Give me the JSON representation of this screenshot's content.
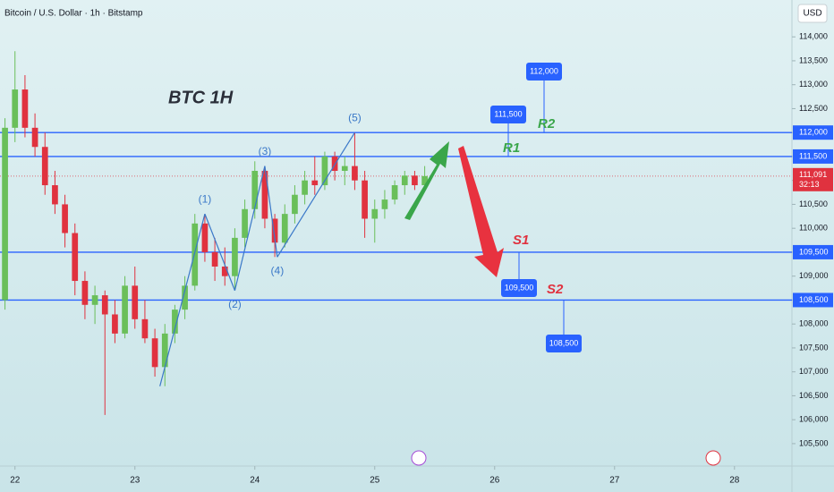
{
  "chart_data": {
    "type": "candlestick",
    "title": "Bitcoin / U.S. Dollar · 1h · Bitstamp",
    "currency": "USD",
    "annotation": "BTC 1H",
    "up_color": "#6abf5a",
    "down_color": "#e0323f",
    "level_color": "#2962ff",
    "x": [
      -2,
      0,
      2,
      4,
      6,
      8,
      10,
      12,
      14,
      16,
      18,
      20,
      22,
      24,
      26,
      28,
      30,
      32,
      34,
      36,
      38,
      40,
      42,
      44,
      46,
      48,
      50,
      52,
      54,
      56,
      58,
      60,
      62,
      64,
      66,
      68,
      70,
      72,
      74,
      76,
      78,
      80,
      82
    ],
    "open": [
      108500,
      112100,
      112900,
      112100,
      111700,
      110900,
      110500,
      109900,
      108900,
      108400,
      108600,
      108200,
      107800,
      108800,
      108100,
      107700,
      107100,
      107800,
      108300,
      108800,
      110100,
      109500,
      109200,
      109000,
      109800,
      110400,
      111200,
      110200,
      109700,
      110300,
      110700,
      111000,
      110900,
      111500,
      111200,
      111300,
      111000,
      110200,
      110400,
      110600,
      110900,
      111100,
      110900
    ],
    "high": [
      112300,
      113700,
      113200,
      112400,
      112000,
      111200,
      110700,
      110100,
      109100,
      108800,
      108700,
      108500,
      109000,
      109200,
      108500,
      107900,
      108000,
      108400,
      109000,
      110300,
      110300,
      109800,
      109600,
      110000,
      110600,
      111400,
      111300,
      110300,
      110500,
      110900,
      111200,
      111500,
      111600,
      111600,
      111500,
      112000,
      111200,
      110600,
      110800,
      111000,
      111200,
      111200,
      111300
    ],
    "low": [
      108300,
      111800,
      111900,
      111500,
      110700,
      110300,
      109600,
      108600,
      108100,
      108000,
      106100,
      107600,
      107700,
      107900,
      107600,
      106900,
      106700,
      107600,
      108100,
      108700,
      109300,
      108900,
      108800,
      108700,
      109600,
      110200,
      110000,
      109400,
      109600,
      110100,
      110500,
      110700,
      110800,
      111000,
      110900,
      110800,
      109800,
      109700,
      110200,
      110500,
      110700,
      110800,
      110800
    ],
    "close": [
      112100,
      112900,
      112100,
      111700,
      110900,
      110500,
      109900,
      108900,
      108400,
      108600,
      108200,
      107800,
      108800,
      108100,
      107700,
      107100,
      107800,
      108300,
      108800,
      110100,
      109500,
      109200,
      109000,
      109800,
      110400,
      111200,
      110200,
      109700,
      110300,
      110700,
      111000,
      110900,
      111500,
      111200,
      111300,
      111000,
      110200,
      110400,
      110600,
      110900,
      111100,
      110900,
      111091
    ],
    "xlim": [
      -3,
      155.5
    ],
    "xticks": [
      {
        "value": 0,
        "label": "22"
      },
      {
        "value": 24,
        "label": "23"
      },
      {
        "value": 48,
        "label": "24"
      },
      {
        "value": 72,
        "label": "25"
      },
      {
        "value": 96,
        "label": "26"
      },
      {
        "value": 120,
        "label": "27"
      },
      {
        "value": 144,
        "label": "28"
      }
    ],
    "ylim": [
      105050,
      114770
    ],
    "yticks": [
      {
        "value": 105500,
        "label": "105,500"
      },
      {
        "value": 106000,
        "label": "106,000"
      },
      {
        "value": 106500,
        "label": "106,500"
      },
      {
        "value": 107000,
        "label": "107,000"
      },
      {
        "value": 107500,
        "label": "107,500"
      },
      {
        "value": 108000,
        "label": "108,000"
      },
      {
        "value": 108500,
        "label": "108,500"
      },
      {
        "value": 109000,
        "label": "109,000"
      },
      {
        "value": 109500,
        "label": "109,500"
      },
      {
        "value": 110000,
        "label": "110,000"
      },
      {
        "value": 110500,
        "label": "110,500"
      },
      {
        "value": 111000,
        "label": "111,000"
      },
      {
        "value": 111500,
        "label": "111,500"
      },
      {
        "value": 112000,
        "label": "112,000"
      },
      {
        "value": 112500,
        "label": "112,500"
      },
      {
        "value": 113000,
        "label": "113,000"
      },
      {
        "value": 113500,
        "label": "113,500"
      },
      {
        "value": 114000,
        "label": "114,000"
      }
    ],
    "levels": [
      {
        "name": "R2",
        "value": 112000,
        "label": "112,000",
        "color": "#3aa64a"
      },
      {
        "name": "R1",
        "value": 111500,
        "label": "111,500",
        "color": "#3aa64a"
      },
      {
        "name": "S1",
        "value": 109500,
        "label": "109,500",
        "color": "#e0323f"
      },
      {
        "name": "S2",
        "value": 108500,
        "label": "108,500",
        "color": "#e0323f"
      }
    ],
    "last_price": {
      "value": 111091,
      "label": "111,091",
      "countdown": "32:13"
    },
    "wave_start": {
      "x": 29,
      "price": 106700
    },
    "waves": [
      {
        "label": "(1)",
        "x": 38,
        "price": 110300
      },
      {
        "label": "(2)",
        "x": 44,
        "price": 108700
      },
      {
        "label": "(3)",
        "x": 50,
        "price": 111300
      },
      {
        "label": "(4)",
        "x": 52.5,
        "price": 109400
      },
      {
        "label": "(5)",
        "x": 68,
        "price": 112000
      }
    ]
  }
}
